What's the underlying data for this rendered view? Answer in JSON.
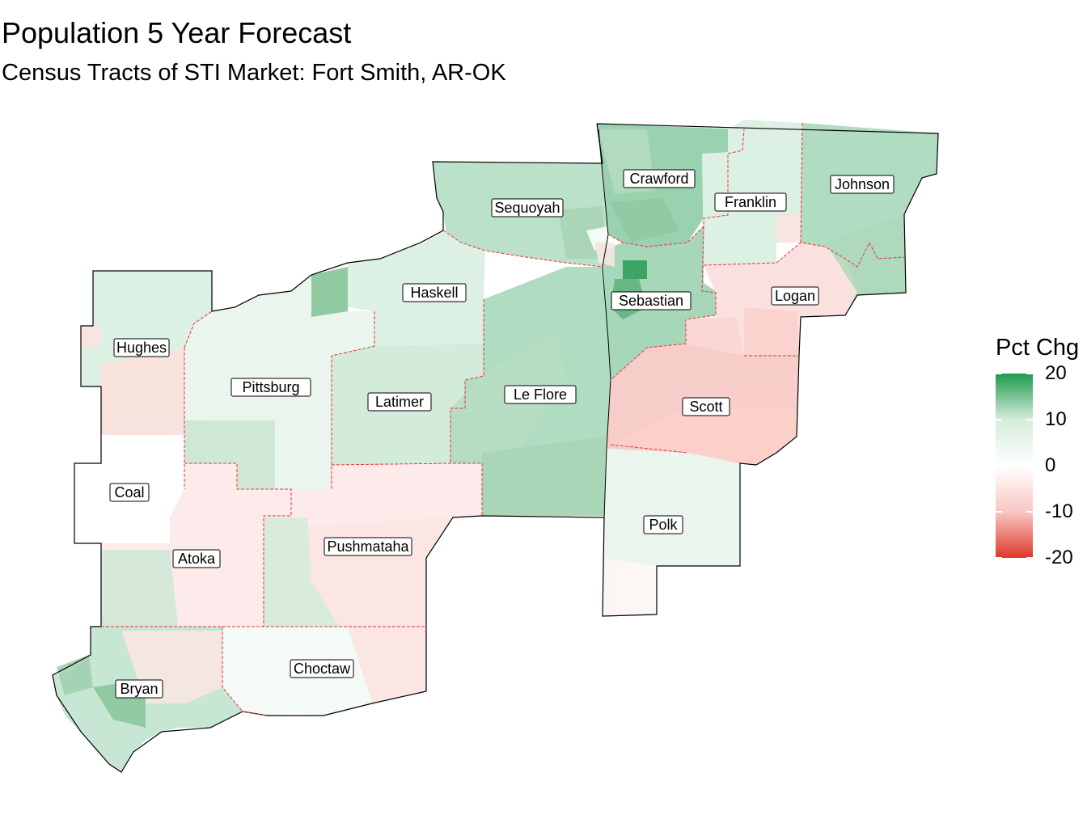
{
  "title": "Population 5 Year Forecast",
  "subtitle": "Census Tracts of STI Market: Fort Smith, AR-OK",
  "legend": {
    "title": "Pct Chg",
    "ticks": [
      {
        "value": 20,
        "label": "20"
      },
      {
        "value": 10,
        "label": "10"
      },
      {
        "value": 0,
        "label": "0"
      },
      {
        "value": -10,
        "label": "-10"
      },
      {
        "value": -20,
        "label": "-20"
      }
    ],
    "colors": {
      "high": "#1e9a4d",
      "mid": "#ffffff",
      "low": "#e0362a"
    }
  },
  "counties": [
    {
      "name": "Crawford",
      "pct": 9
    },
    {
      "name": "Franklin",
      "pct": 3
    },
    {
      "name": "Johnson",
      "pct": 7
    },
    {
      "name": "Sequoyah",
      "pct": 6
    },
    {
      "name": "Haskell",
      "pct": 3
    },
    {
      "name": "Sebastian",
      "pct": 8
    },
    {
      "name": "Logan",
      "pct": -3
    },
    {
      "name": "Hughes",
      "pct": 3
    },
    {
      "name": "Pittsburg",
      "pct": 2
    },
    {
      "name": "Latimer",
      "pct": 4
    },
    {
      "name": "Le Flore",
      "pct": 7
    },
    {
      "name": "Scott",
      "pct": -5
    },
    {
      "name": "Coal",
      "pct": 0
    },
    {
      "name": "Atoka",
      "pct": -2
    },
    {
      "name": "Pushmataha",
      "pct": -2
    },
    {
      "name": "Polk",
      "pct": 2
    },
    {
      "name": "Choctaw",
      "pct": 1
    },
    {
      "name": "Bryan",
      "pct": 5
    }
  ]
}
